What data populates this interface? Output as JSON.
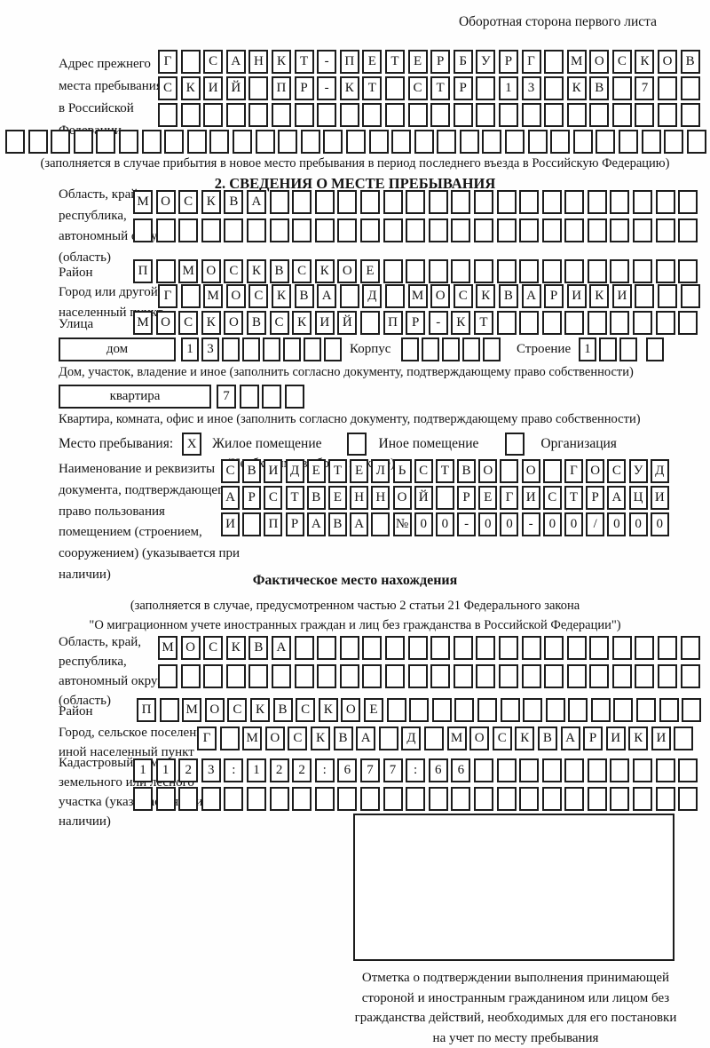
{
  "page": {
    "header_note": "Оборотная сторона первого листа"
  },
  "prev_address": {
    "label": "Адрес прежнего места пребывания в Российской Федерации",
    "row1": {
      "len": 24,
      "chars": "Г САНКТ-ПЕТЕРБУРГ МОСКОВ"
    },
    "row2": {
      "len": 24,
      "chars": "СКИЙ ПР-КТ СТР 13 КВ 7"
    },
    "row3": {
      "len": 24,
      "chars": ""
    },
    "row4": {
      "len": 31,
      "chars": ""
    },
    "note": "(заполняется в случае прибытия в новое место пребывания в период последнего въезда в Российскую Федерацию)"
  },
  "section2": {
    "title": "2. СВЕДЕНИЯ О МЕСТЕ ПРЕБЫВАНИЯ",
    "oblast": {
      "label": "Область, край, республика, автономный округ (область)",
      "row1": {
        "len": 25,
        "chars": "МОСКВА"
      },
      "row2": {
        "len": 25,
        "chars": ""
      }
    },
    "raion": {
      "label": "Район",
      "row": {
        "len": 25,
        "chars": "П МОСКВСКОЕ"
      }
    },
    "city": {
      "label": "Город или другой населенный пункт",
      "row": {
        "len": 24,
        "chars": "Г МОСКВА Д МОСКВАРИКИ"
      }
    },
    "street": {
      "label": "Улица",
      "row": {
        "len": 25,
        "chars": "МОСКОВСКИЙ ПР-КТ"
      }
    },
    "house": {
      "box_label": "дом",
      "row": {
        "len": 8,
        "chars": "13"
      },
      "korpus_label": "Корпус",
      "korpus_row": {
        "len": 5,
        "chars": ""
      },
      "stroenie_label": "Строение",
      "stroenie_row": {
        "len": 4,
        "chars": "1"
      },
      "note": "Дом, участок, владение и иное (заполнить согласно документу, подтверждающему право собственности)"
    },
    "apartment": {
      "box_label": "квартира",
      "row": {
        "len": 4,
        "chars": "7"
      },
      "note": "Квартира, комната, офис и иное (заполнить согласно документу, подтверждающему право собственности)"
    },
    "stay_type": {
      "label": "Место пребывания:",
      "options": [
        {
          "label": "Жилое помещение",
          "mark": "X"
        },
        {
          "label": "Иное помещение",
          "mark": ""
        },
        {
          "label": "Организация",
          "mark": ""
        }
      ],
      "note": "(Необходимо выбрать нужное)"
    },
    "document": {
      "label": "Наименование и реквизиты документа, подтверждающего право пользования помещением (строением, сооружением) (указывается при наличии)",
      "row1": {
        "len": 21,
        "chars": "СВИДЕТЕЛЬСТВО О ГОСУД"
      },
      "row2": {
        "len": 21,
        "chars": "АРСТВЕННОЙ РЕГИСТРАЦИ"
      },
      "row3": {
        "len": 21,
        "chars": "И ПРАВА №00-00-00/000"
      }
    }
  },
  "fact": {
    "title": "Фактическое место нахождения",
    "note_lines": [
      "(заполняется в случае, предусмотренном частью 2 статьи 21 Федерального закона",
      "\"О миграционном учете иностранных граждан и лиц без гражданства в Российской Федерации\")"
    ],
    "oblast": {
      "label": "Область, край, республика, автономный округ (область)",
      "row1": {
        "len": 24,
        "chars": "МОСКВА"
      },
      "row2": {
        "len": 24,
        "chars": ""
      }
    },
    "raion": {
      "label": "Район",
      "row": {
        "len": 25,
        "chars": "П МОСКВСКОЕ"
      }
    },
    "city": {
      "label": "Город, сельское поселение, иной населенный пункт",
      "row": {
        "len": 22,
        "chars": "Г МОСКВА Д МОСКВАРИКИ"
      }
    },
    "cadastral": {
      "label": "Кадастровый номер земельного или лесного участка (указывается при наличии)",
      "row1": {
        "len": 25,
        "chars": "1123:122:677:66"
      },
      "row2": {
        "len": 25,
        "chars": ""
      }
    },
    "stamp_caption": [
      "Отметка о подтверждении выполнения принимающей",
      "стороной и иностранным гражданином или лицом без",
      "гражданства действий, необходимых для его постановки",
      "на учет по месту пребывания"
    ]
  }
}
